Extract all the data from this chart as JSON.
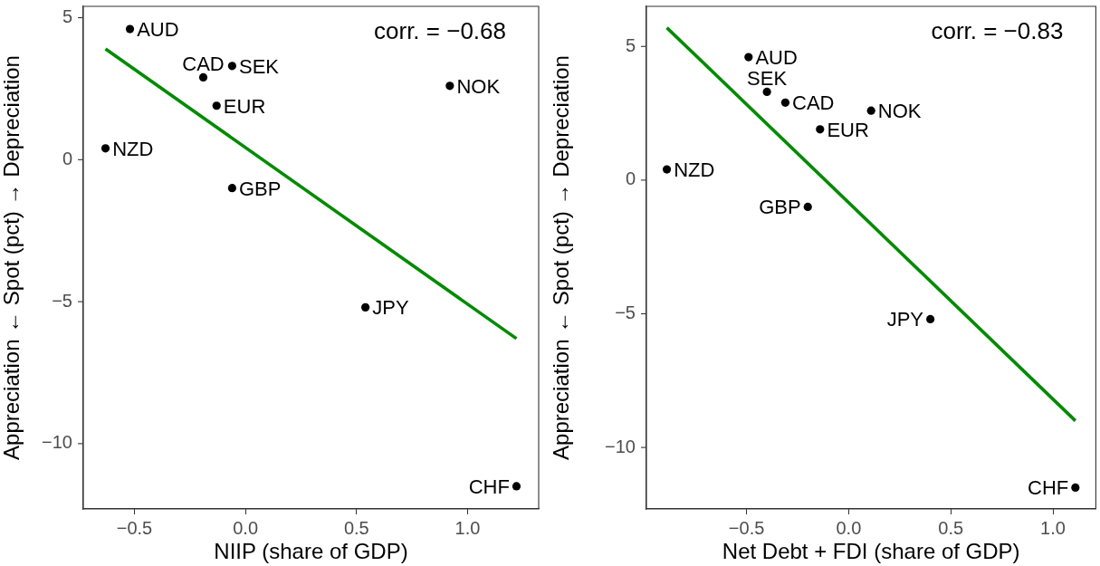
{
  "chart_data": [
    {
      "type": "scatter",
      "xlabel": "NIIP (share of GDP)",
      "ylabel": "Appreciation ← Spot (pct) → Depreciation",
      "xlim": [
        -0.73,
        1.32
      ],
      "ylim": [
        -12.3,
        5.4
      ],
      "xticks": [
        {
          "value": -0.5,
          "label": "−0.5"
        },
        {
          "value": 0,
          "label": "0.0"
        },
        {
          "value": 0.5,
          "label": "0.5"
        },
        {
          "value": 1,
          "label": "1.0"
        }
      ],
      "yticks": [
        {
          "value": -10,
          "label": "−10"
        },
        {
          "value": -5,
          "label": "−5"
        },
        {
          "value": 0,
          "label": "0"
        },
        {
          "value": 5,
          "label": "5"
        }
      ],
      "grid": false,
      "legend": false,
      "series": [
        {
          "type": "scatter",
          "color": "#000000",
          "marker": "circle",
          "x": [
            -0.52,
            -0.63,
            -0.19,
            -0.06,
            -0.13,
            -0.06,
            0.92,
            0.54,
            1.22
          ],
          "values": [
            4.6,
            0.4,
            2.9,
            3.3,
            1.9,
            -1.0,
            2.6,
            -5.2,
            -11.5
          ]
        },
        {
          "type": "line",
          "color": "#008b00",
          "marker": "none",
          "x": [
            -0.63,
            1.22
          ],
          "values": [
            3.9,
            -6.3
          ]
        }
      ],
      "annotations": [
        "corr. = −0.68",
        {
          "text": "AUD",
          "x": -0.52,
          "y": 4.6
        },
        {
          "text": "NZD",
          "x": -0.63,
          "y": 0.4
        },
        {
          "text": "CAD",
          "x": -0.19,
          "y": 2.9
        },
        {
          "text": "SEK",
          "x": -0.06,
          "y": 3.3
        },
        {
          "text": "EUR",
          "x": -0.13,
          "y": 1.9
        },
        {
          "text": "GBP",
          "x": -0.06,
          "y": -1.0
        },
        {
          "text": "NOK",
          "x": 0.92,
          "y": 2.6
        },
        {
          "text": "JPY",
          "x": 0.54,
          "y": -5.2
        },
        {
          "text": "CHF",
          "x": 1.22,
          "y": -11.5
        }
      ]
    },
    {
      "type": "scatter",
      "xlabel": "Net Debt + FDI (share of GDP)",
      "ylabel": "Appreciation ← Spot (pct) → Depreciation",
      "xlim": [
        -0.99,
        1.21
      ],
      "ylim": [
        -12.3,
        6.5
      ],
      "xticks": [
        {
          "value": -0.5,
          "label": "−0.5"
        },
        {
          "value": 0,
          "label": "0.0"
        },
        {
          "value": 0.5,
          "label": "0.5"
        },
        {
          "value": 1,
          "label": "1.0"
        }
      ],
      "yticks": [
        {
          "value": -10,
          "label": "−10"
        },
        {
          "value": -5,
          "label": "−5"
        },
        {
          "value": 0,
          "label": "0"
        },
        {
          "value": 5,
          "label": "5"
        }
      ],
      "grid": false,
      "legend": false,
      "series": [
        {
          "type": "scatter",
          "color": "#000000",
          "marker": "circle",
          "x": [
            -0.49,
            -0.89,
            -0.31,
            -0.4,
            -0.14,
            -0.2,
            0.11,
            0.4,
            1.11
          ],
          "values": [
            4.6,
            0.4,
            2.9,
            3.3,
            1.9,
            -1.0,
            2.6,
            -5.2,
            -11.5
          ]
        },
        {
          "type": "line",
          "color": "#008b00",
          "marker": "none",
          "x": [
            -0.89,
            1.11
          ],
          "values": [
            5.7,
            -9.0
          ]
        }
      ],
      "annotations": [
        "corr. = −0.83",
        {
          "text": "AUD",
          "x": -0.49,
          "y": 4.6
        },
        {
          "text": "NZD",
          "x": -0.89,
          "y": 0.4
        },
        {
          "text": "CAD",
          "x": -0.31,
          "y": 2.9
        },
        {
          "text": "SEK",
          "x": -0.4,
          "y": 3.3
        },
        {
          "text": "EUR",
          "x": -0.14,
          "y": 1.9
        },
        {
          "text": "GBP",
          "x": -0.2,
          "y": -1.0
        },
        {
          "text": "NOK",
          "x": 0.11,
          "y": 2.6
        },
        {
          "text": "JPY",
          "x": 0.4,
          "y": -5.2
        },
        {
          "text": "CHF",
          "x": 1.11,
          "y": -11.5
        }
      ]
    }
  ]
}
